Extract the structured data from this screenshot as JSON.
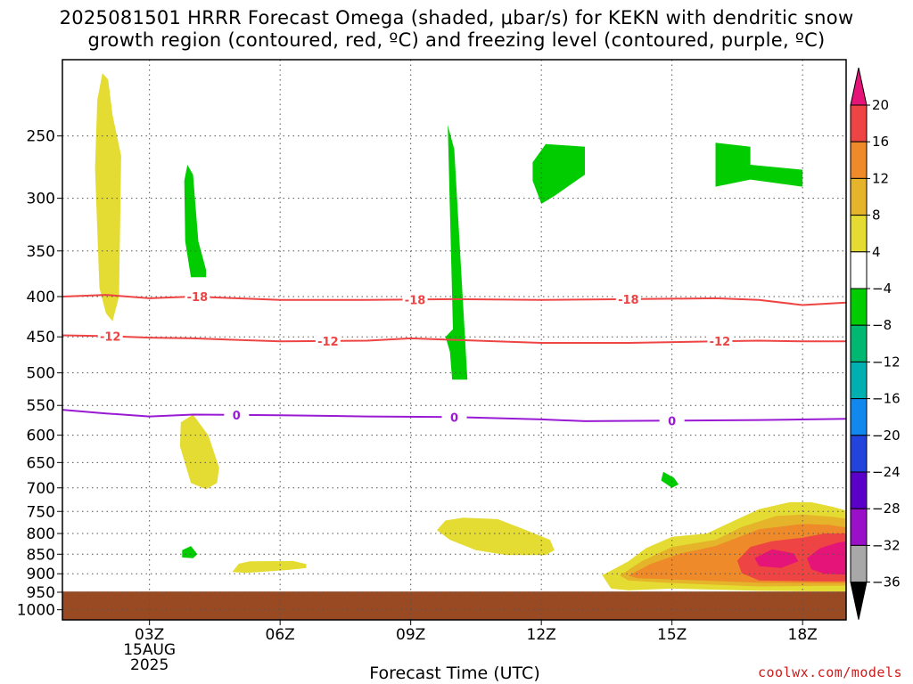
{
  "title_line1": "2025081501 HRRR Forecast Omega (shaded, μbar/s) for KEKN with dendritic snow",
  "title_line2": "growth region (contoured, red, ºC) and freezing level (contoured, purple, ºC)",
  "credit": "coolwx.com/models",
  "chart_data": {
    "type": "time-height cross section",
    "title": "2025081501 HRRR Forecast Omega (shaded, μbar/s) for KEKN with dendritic snow growth region (contoured, red, ºC) and freezing level (contoured, purple, ºC)",
    "xlabel": "Forecast Time (UTC)",
    "ylabel": "",
    "x_ticks": [
      {
        "h": 3,
        "label": "03Z",
        "sub": [
          "15AUG",
          "2025"
        ]
      },
      {
        "h": 6,
        "label": "06Z"
      },
      {
        "h": 9,
        "label": "09Z"
      },
      {
        "h": 12,
        "label": "12Z"
      },
      {
        "h": 15,
        "label": "15Z"
      },
      {
        "h": 18,
        "label": "18Z"
      }
    ],
    "xlim_hours": [
      1,
      19
    ],
    "y_ticks": [
      250,
      300,
      350,
      400,
      450,
      500,
      550,
      600,
      650,
      700,
      750,
      800,
      850,
      900,
      950,
      1000
    ],
    "ylim_hpa": [
      200,
      1030
    ],
    "y_scale": "log",
    "grid": "dotted",
    "surface": {
      "color": "#9a4a22",
      "from_hpa": 948
    },
    "contours": [
      {
        "label": "-18",
        "color": "#ee4444",
        "points": [
          [
            1,
            400
          ],
          [
            2,
            398
          ],
          [
            3,
            402
          ],
          [
            4,
            400
          ],
          [
            5,
            402
          ],
          [
            6,
            404
          ],
          [
            8,
            404
          ],
          [
            10,
            403
          ],
          [
            12,
            404
          ],
          [
            14,
            403
          ],
          [
            16,
            402
          ],
          [
            17,
            404
          ],
          [
            18,
            410
          ],
          [
            19,
            407
          ]
        ],
        "label_at": [
          4.1,
          9.1,
          14.0
        ]
      },
      {
        "label": "-12",
        "color": "#ee4444",
        "points": [
          [
            1,
            448
          ],
          [
            2,
            449
          ],
          [
            3,
            451
          ],
          [
            4,
            452
          ],
          [
            6,
            456
          ],
          [
            8,
            455
          ],
          [
            9,
            452
          ],
          [
            10,
            454
          ],
          [
            12,
            458
          ],
          [
            14,
            458
          ],
          [
            16,
            456
          ],
          [
            17,
            455
          ],
          [
            18,
            456
          ],
          [
            19,
            456
          ]
        ],
        "label_at": [
          2.1,
          7.1,
          16.1
        ]
      },
      {
        "label": "0",
        "color": "#9a1ad4",
        "points": [
          [
            1,
            557
          ],
          [
            2,
            563
          ],
          [
            3,
            568
          ],
          [
            4,
            565
          ],
          [
            6,
            566
          ],
          [
            8,
            568
          ],
          [
            10,
            569
          ],
          [
            12,
            573
          ],
          [
            13,
            576
          ],
          [
            15,
            575
          ],
          [
            17,
            574
          ],
          [
            19,
            572
          ]
        ],
        "label_at": [
          5.0,
          10.0,
          15.0
        ]
      }
    ],
    "omega_regions": [
      {
        "level": "4 to 8",
        "color": "#e4dc32",
        "points": [
          [
            1.92,
            208
          ],
          [
            2.05,
            212
          ],
          [
            2.15,
            235
          ],
          [
            2.35,
            265
          ],
          [
            2.3,
            400
          ],
          [
            2.15,
            430
          ],
          [
            2.0,
            420
          ],
          [
            1.85,
            390
          ],
          [
            1.75,
            275
          ],
          [
            1.8,
            225
          ]
        ]
      },
      {
        "level": "-8 to -4",
        "color": "#00cc00",
        "points": [
          [
            3.87,
            272
          ],
          [
            4.0,
            280
          ],
          [
            4.12,
            340
          ],
          [
            4.3,
            370
          ],
          [
            4.3,
            378
          ],
          [
            3.95,
            378
          ],
          [
            3.82,
            340
          ],
          [
            3.8,
            285
          ]
        ]
      },
      {
        "level": "4 to 8",
        "color": "#e4dc32",
        "points": [
          [
            3.72,
            578
          ],
          [
            4.0,
            565
          ],
          [
            4.35,
            600
          ],
          [
            4.6,
            660
          ],
          [
            4.55,
            690
          ],
          [
            4.3,
            703
          ],
          [
            3.95,
            690
          ],
          [
            3.7,
            620
          ]
        ]
      },
      {
        "level": "-8 to -4",
        "color": "#00cc00",
        "points": [
          [
            3.75,
            840
          ],
          [
            3.95,
            830
          ],
          [
            4.1,
            850
          ],
          [
            4.0,
            860
          ],
          [
            3.75,
            858
          ]
        ]
      },
      {
        "level": "4 to 8",
        "color": "#e4dc32",
        "points": [
          [
            4.9,
            895
          ],
          [
            5.05,
            874
          ],
          [
            5.3,
            868
          ],
          [
            6.3,
            867
          ],
          [
            6.6,
            875
          ],
          [
            6.6,
            885
          ],
          [
            6.2,
            890
          ],
          [
            5.2,
            898
          ]
        ]
      },
      {
        "level": "-8 to -4",
        "color": "#00cc00",
        "points": [
          [
            9.85,
            242
          ],
          [
            10.0,
            260
          ],
          [
            10.3,
            510
          ],
          [
            9.95,
            510
          ],
          [
            9.9,
            470
          ],
          [
            9.8,
            450
          ],
          [
            9.97,
            440
          ]
        ]
      },
      {
        "level": "4 to 8",
        "color": "#e4dc32",
        "points": [
          [
            9.6,
            792
          ],
          [
            9.8,
            770
          ],
          [
            10.2,
            764
          ],
          [
            11.0,
            767
          ],
          [
            11.6,
            790
          ],
          [
            12.2,
            815
          ],
          [
            12.3,
            840
          ],
          [
            12.1,
            852
          ],
          [
            11.2,
            852
          ],
          [
            10.5,
            840
          ],
          [
            9.9,
            815
          ]
        ]
      },
      {
        "level": "-8 to -4",
        "color": "#00cc00",
        "points": [
          [
            11.8,
            270
          ],
          [
            12.1,
            256
          ],
          [
            13.0,
            258
          ],
          [
            13.0,
            280
          ],
          [
            12.3,
            298
          ],
          [
            12.0,
            305
          ],
          [
            11.8,
            285
          ]
        ]
      },
      {
        "level": "-8 to -4",
        "color": "#00cc00",
        "points": [
          [
            14.8,
            668
          ],
          [
            15.05,
            680
          ],
          [
            15.15,
            693
          ],
          [
            15.0,
            700
          ],
          [
            14.75,
            685
          ]
        ]
      },
      {
        "level": "-8 to -4",
        "color": "#00cc00",
        "points": [
          [
            16.0,
            255
          ],
          [
            16.8,
            258
          ],
          [
            16.8,
            272
          ],
          [
            18.0,
            276
          ],
          [
            18.0,
            290
          ],
          [
            16.8,
            284
          ],
          [
            16.0,
            290
          ]
        ]
      },
      {
        "level": "4 to 8",
        "color": "#e4dc32",
        "points": [
          [
            13.4,
            904
          ],
          [
            14.0,
            868
          ],
          [
            14.4,
            835
          ],
          [
            15.0,
            808
          ],
          [
            15.8,
            800
          ],
          [
            16.4,
            772
          ],
          [
            17.0,
            745
          ],
          [
            17.7,
            730
          ],
          [
            18.2,
            730
          ],
          [
            18.7,
            740
          ],
          [
            19.0,
            748
          ],
          [
            19.0,
            948
          ],
          [
            17.0,
            946
          ],
          [
            15.0,
            940
          ],
          [
            14.0,
            945
          ],
          [
            13.6,
            940
          ]
        ]
      },
      {
        "level": "8 to 12",
        "color": "#e6b42a",
        "points": [
          [
            13.8,
            905
          ],
          [
            14.3,
            868
          ],
          [
            15.0,
            832
          ],
          [
            16.0,
            815
          ],
          [
            16.6,
            785
          ],
          [
            17.4,
            760
          ],
          [
            18.0,
            757
          ],
          [
            18.7,
            762
          ],
          [
            19.0,
            766
          ],
          [
            19.0,
            932
          ],
          [
            17.0,
            934
          ],
          [
            15.0,
            925
          ],
          [
            14.0,
            918
          ]
        ]
      },
      {
        "level": "12 to 16",
        "color": "#ee8a2a",
        "points": [
          [
            14.0,
            905
          ],
          [
            14.5,
            875
          ],
          [
            15.2,
            848
          ],
          [
            16.0,
            830
          ],
          [
            17.0,
            790
          ],
          [
            18.0,
            778
          ],
          [
            18.6,
            780
          ],
          [
            19.0,
            786
          ],
          [
            19.0,
            925
          ],
          [
            17.0,
            924
          ],
          [
            15.0,
            915
          ],
          [
            14.2,
            912
          ]
        ]
      },
      {
        "level": "16 to 20",
        "color": "#ee4444",
        "points": [
          [
            16.5,
            866
          ],
          [
            16.8,
            832
          ],
          [
            17.3,
            818
          ],
          [
            18.0,
            810
          ],
          [
            18.5,
            800
          ],
          [
            19.0,
            800
          ],
          [
            19.0,
            920
          ],
          [
            18.3,
            920
          ],
          [
            17.0,
            918
          ],
          [
            16.6,
            898
          ]
        ]
      },
      {
        "level": "20+",
        "color": "#e41478",
        "points": [
          [
            16.9,
            860
          ],
          [
            17.3,
            838
          ],
          [
            17.8,
            848
          ],
          [
            17.9,
            868
          ],
          [
            17.5,
            885
          ],
          [
            17.0,
            880
          ]
        ]
      },
      {
        "level": "20+",
        "color": "#e41478",
        "points": [
          [
            18.1,
            860
          ],
          [
            18.4,
            835
          ],
          [
            18.8,
            822
          ],
          [
            19.0,
            818
          ],
          [
            19.0,
            902
          ],
          [
            18.5,
            900
          ],
          [
            18.2,
            888
          ]
        ]
      }
    ],
    "colorbar": {
      "labels": [
        "20",
        "16",
        "12",
        "8",
        "4",
        "−4",
        "−8",
        "−12",
        "−16",
        "−20",
        "−24",
        "−28",
        "−32",
        "−36"
      ],
      "colors": [
        "#ee4444",
        "#ee8a2a",
        "#e6b42a",
        "#e4dc32",
        "#ffffff",
        "#00cc00",
        "#00b872",
        "#00b0b0",
        "#1188ee",
        "#2244dd",
        "#5a00c8",
        "#9a10c8",
        "#a8a8a8"
      ],
      "top_color": "#e41478",
      "bottom_color": "#000000"
    }
  }
}
